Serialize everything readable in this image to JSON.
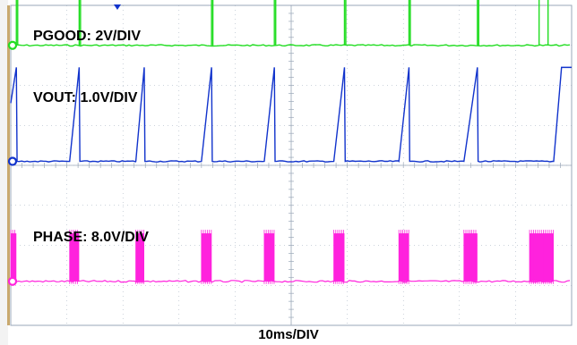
{
  "chart_data": {
    "type": "line",
    "title": "",
    "x_unit": "ms",
    "x_range": [
      0,
      100
    ],
    "divisions": {
      "x": 10,
      "y": 8
    },
    "timebase_label": "10ms/DIV",
    "grid": true,
    "colors": {
      "pgood": "#22dd22",
      "vout": "#1133cc",
      "phase": "#ff22dd",
      "grid": "#9aa7b8",
      "bezel": "#c9a96e"
    },
    "series": [
      {
        "name": "PGOOD",
        "label": "PGOOD: 2V/DIV",
        "scale": "2V/DIV",
        "baseline_div": 1.0,
        "description_values": {
          "pulse_times_ms": [
            1,
            12.2,
            35.8,
            47.0,
            59.5,
            71.0,
            83.2,
            94.2
          ],
          "pulse_height_div": 2.4
        }
      },
      {
        "name": "VOUT",
        "label": "VOUT: 1.0V/DIV",
        "scale": "1.0V/DIV",
        "baseline_div": 3.9,
        "description_values": {
          "ramp_start_ms": [
            0,
            10.5,
            22.3,
            34.0,
            45.2,
            57.6,
            69.2,
            80.8
          ],
          "ramp_peak_ms": [
            1,
            12.2,
            23.8,
            35.8,
            47.0,
            59.5,
            71.0,
            83.2
          ],
          "peak_height_div": 2.35
        }
      },
      {
        "name": "PHASE",
        "label": "PHASE: 8.0V/DIV",
        "scale": "8.0V/DIV",
        "baseline_div": 6.9,
        "description_values": {
          "burst_start_ms": [
            0,
            10.5,
            22.3,
            34.0,
            45.2,
            57.6,
            69.2,
            80.8,
            92.5
          ],
          "burst_end_ms": [
            1,
            12.2,
            23.8,
            35.8,
            47.0,
            59.5,
            71.0,
            83.2,
            96.8
          ],
          "burst_height_div": 1.2
        }
      }
    ]
  }
}
